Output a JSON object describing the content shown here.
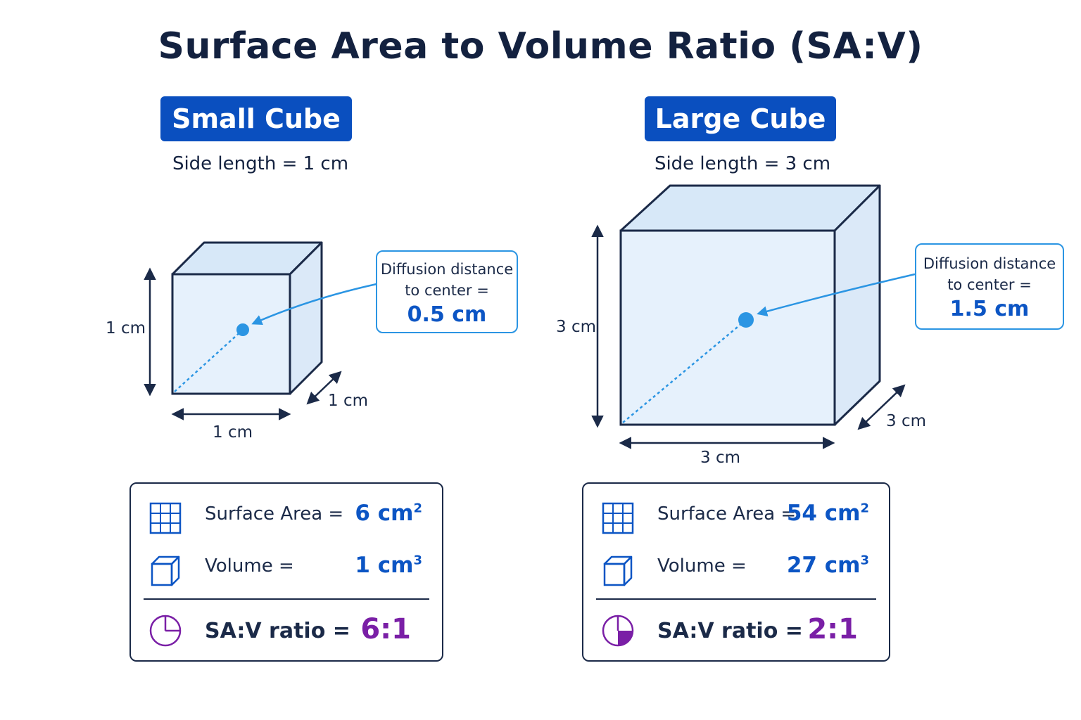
{
  "title": "Surface Area to Volume Ratio (SA:V)",
  "colors": {
    "navy": "#13213f",
    "badge_blue": "#0a4fbf",
    "value_blue": "#0c55c4",
    "callout_blue": "#2b95e3",
    "ratio_purple": "#7a1fa6",
    "cube_fill": "#e3effb"
  },
  "small": {
    "badge": "Small Cube",
    "side_label": "Side length = 1 cm",
    "dim_height": "1 cm",
    "dim_width": "1 cm",
    "dim_depth": "1 cm",
    "callout": {
      "line1": "Diffusion distance",
      "line2": "to center =",
      "value": "0.5 cm"
    },
    "stats": {
      "sa_label": "Surface Area =",
      "sa_value": "6 cm",
      "sa_unit_power": "2",
      "vol_label": "Volume =",
      "vol_value": "1 cm",
      "vol_unit_power": "3",
      "ratio_label": "SA:V ratio =",
      "ratio_value": "6:1"
    },
    "icons": {
      "sa": "grid-icon",
      "vol": "cube-icon",
      "ratio": "pie-chart-icon"
    }
  },
  "large": {
    "badge": "Large Cube",
    "side_label": "Side length = 3 cm",
    "dim_height": "3 cm",
    "dim_width": "3 cm",
    "dim_depth": "3 cm",
    "callout": {
      "line1": "Diffusion distance",
      "line2": "to center =",
      "value": "1.5 cm"
    },
    "stats": {
      "sa_label": "Surface Area =",
      "sa_value": "54 cm",
      "sa_unit_power": "2",
      "vol_label": "Volume =",
      "vol_value": "27 cm",
      "vol_unit_power": "3",
      "ratio_label": "SA:V ratio =",
      "ratio_value": "2:1"
    },
    "icons": {
      "sa": "grid-icon",
      "vol": "cube-icon",
      "ratio": "pie-chart-icon"
    }
  }
}
